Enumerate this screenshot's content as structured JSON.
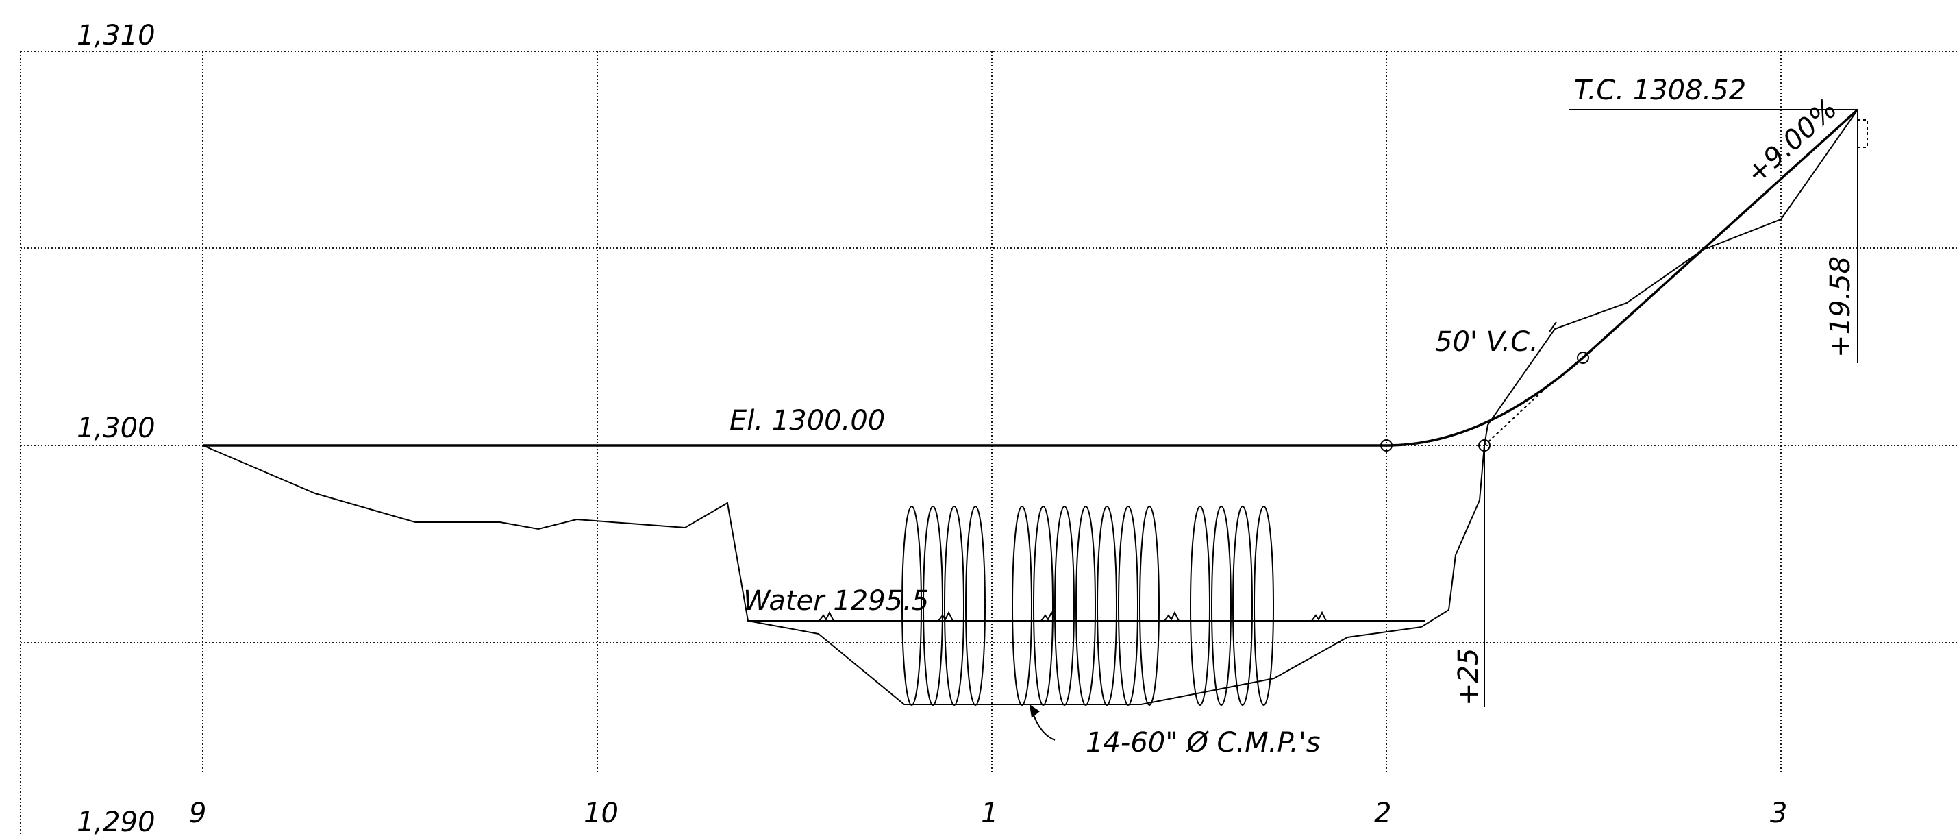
{
  "axes": {
    "elevation_labels": [
      "1,310",
      "1,300",
      "1,290"
    ],
    "station_labels": [
      "9",
      "10",
      "1",
      "2",
      "3"
    ]
  },
  "annotations": {
    "top_of_curb": "T.C. 1308.52",
    "grade": "+9.00%",
    "vertical_curve": "50' V.C.",
    "elevation": "El. 1300.00",
    "water": "Water 1295.5",
    "culverts": "14-60\" Ø C.M.P.'s",
    "offset_25": "+25",
    "offset_1958": "+19.58"
  }
}
